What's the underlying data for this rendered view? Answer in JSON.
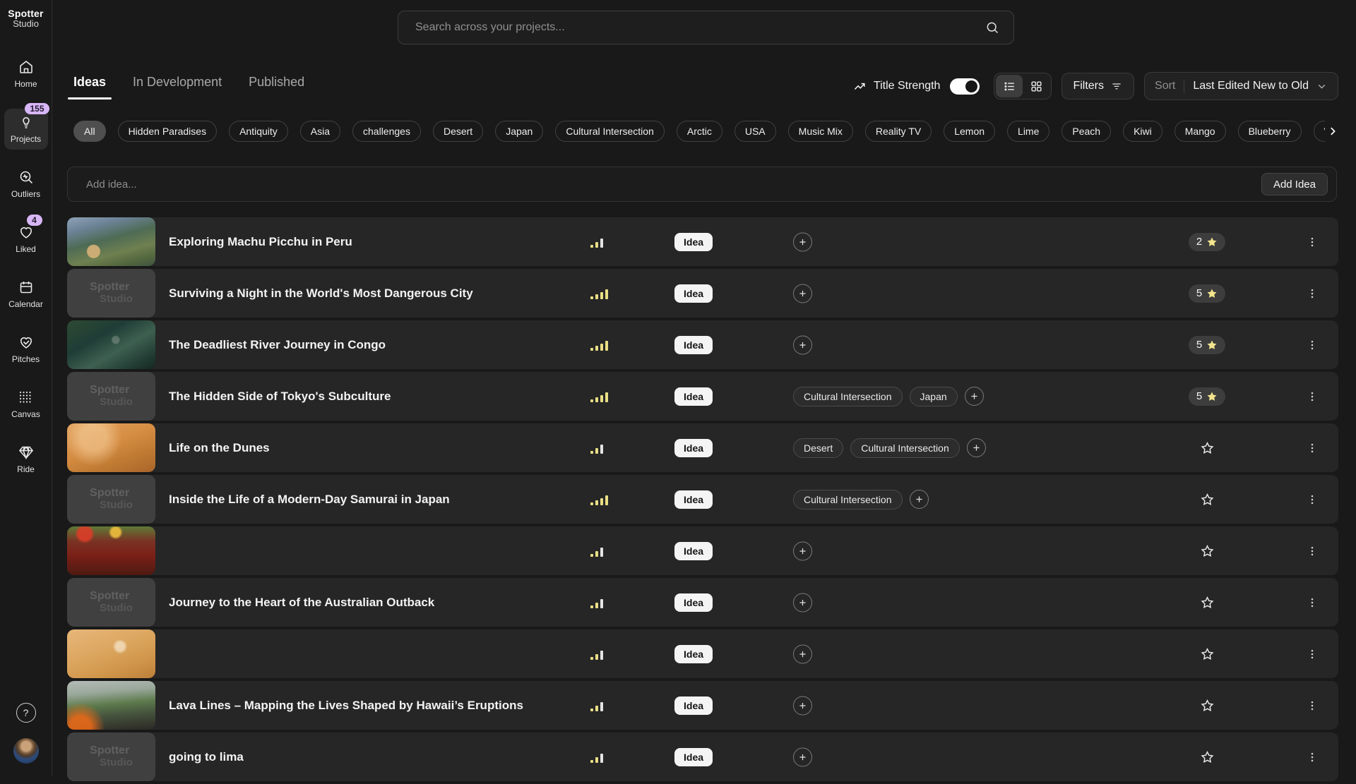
{
  "brand": {
    "line1": "Spotter",
    "line2": "Studio"
  },
  "colors": {
    "badge_lavender": "#d7b6f6",
    "star_yellow": "#f2e48c",
    "strength_yellow": "#e9de86",
    "row_bg": "#262626",
    "page_bg": "#191919"
  },
  "sidebar": {
    "items": [
      {
        "label": "Home",
        "icon": "home-icon",
        "badge": null,
        "active": false
      },
      {
        "label": "Projects",
        "icon": "lightbulb-icon",
        "badge": "155",
        "active": true
      },
      {
        "label": "Outliers",
        "icon": "outliers-scope-icon",
        "badge": null,
        "active": false
      },
      {
        "label": "Liked",
        "icon": "heart-icon",
        "badge": "4",
        "active": false
      },
      {
        "label": "Calendar",
        "icon": "calendar-icon",
        "badge": null,
        "active": false
      },
      {
        "label": "Pitches",
        "icon": "pitch-hands-heart-icon",
        "badge": null,
        "active": false
      },
      {
        "label": "Canvas",
        "icon": "dots-grid-icon",
        "badge": null,
        "active": false
      },
      {
        "label": "Ride",
        "icon": "diamond-icon",
        "badge": null,
        "active": false
      }
    ],
    "help_label": "?"
  },
  "search": {
    "placeholder": "Search across your projects..."
  },
  "tabs": [
    {
      "label": "Ideas",
      "active": true
    },
    {
      "label": "In Development",
      "active": false
    },
    {
      "label": "Published",
      "active": false
    }
  ],
  "controls": {
    "title_strength_label": "Title Strength",
    "toggle_on": true,
    "filters_label": "Filters",
    "sort_label": "Sort",
    "sort_value": "Last Edited New to Old"
  },
  "filter_chips": [
    "All",
    "Hidden Paradises",
    "Antiquity",
    "Asia",
    "challenges",
    "Desert",
    "Japan",
    "Cultural Intersection",
    "Arctic",
    "USA",
    "Music Mix",
    "Reality TV",
    "Lemon",
    "Lime",
    "Peach",
    "Kiwi",
    "Mango",
    "Blueberry",
    "V"
  ],
  "add_idea": {
    "placeholder": "Add idea...",
    "button_label": "Add Idea"
  },
  "rows": [
    {
      "title": "Exploring Machu Picchu in Peru",
      "badge": "Idea",
      "strength": "low",
      "tags": [],
      "stars": "2",
      "thumb": "machu"
    },
    {
      "title": "Surviving a Night in the World's Most Dangerous City",
      "badge": "Idea",
      "strength": "high",
      "tags": [],
      "stars": "5",
      "thumb": "placeholder"
    },
    {
      "title": "The Deadliest River Journey in Congo",
      "badge": "Idea",
      "strength": "high",
      "tags": [],
      "stars": "5",
      "thumb": "congo"
    },
    {
      "title": "The Hidden Side of Tokyo's Subculture",
      "badge": "Idea",
      "strength": "high",
      "tags": [
        "Cultural Intersection",
        "Japan"
      ],
      "stars": "5",
      "thumb": "placeholder"
    },
    {
      "title": "Life on the Dunes",
      "badge": "Idea",
      "strength": "low",
      "tags": [
        "Desert",
        "Cultural Intersection"
      ],
      "stars": null,
      "thumb": "dunes"
    },
    {
      "title": "Inside the Life of a Modern-Day Samurai in Japan",
      "badge": "Idea",
      "strength": "high",
      "tags": [
        "Cultural Intersection"
      ],
      "stars": null,
      "thumb": "placeholder"
    },
    {
      "title": "",
      "badge": "Idea",
      "strength": "low",
      "tags": [],
      "stars": null,
      "thumb": "crowd"
    },
    {
      "title": "Journey to the Heart of the Australian Outback",
      "badge": "Idea",
      "strength": "low",
      "tags": [],
      "stars": null,
      "thumb": "placeholder"
    },
    {
      "title": "",
      "badge": "Idea",
      "strength": "low",
      "tags": [],
      "stars": null,
      "thumb": "desert2"
    },
    {
      "title": "Lava Lines – Mapping the Lives Shaped by Hawaii’s Eruptions",
      "badge": "Idea",
      "strength": "low",
      "tags": [],
      "stars": null,
      "thumb": "hawaii"
    },
    {
      "title": "going to lima",
      "badge": "Idea",
      "strength": "low",
      "tags": [],
      "stars": null,
      "thumb": "placeholder"
    }
  ]
}
